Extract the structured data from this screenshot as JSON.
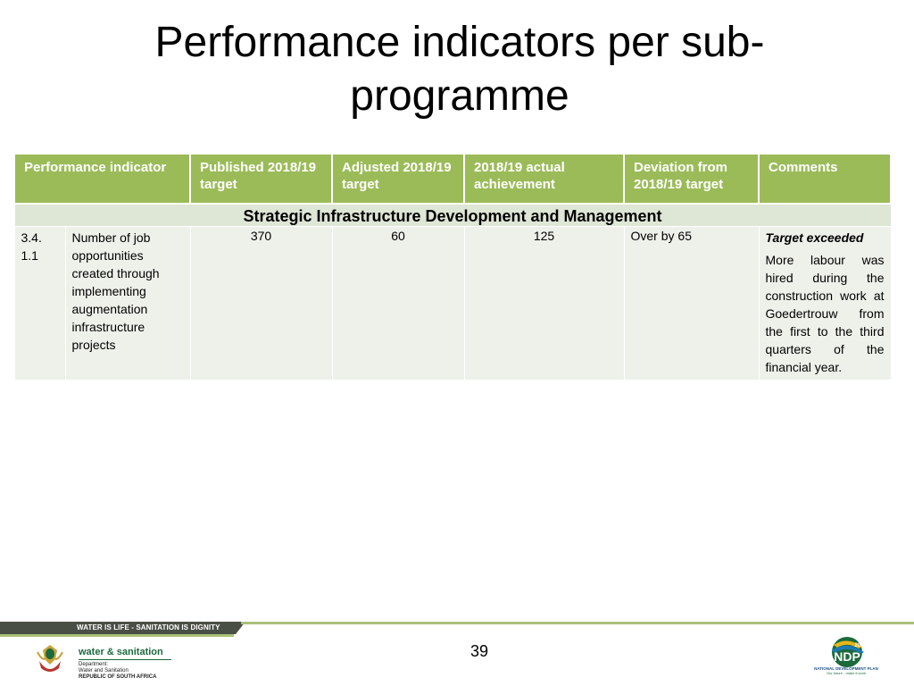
{
  "slide": {
    "title": "Performance indicators per sub-programme",
    "page_number": "39"
  },
  "table": {
    "headers": [
      "Performance indicator",
      "Published 2018/19 target",
      "Adjusted 2018/19 target",
      "2018/19 actual achievement",
      "Deviation from 2018/19 target",
      "Comments"
    ],
    "section": "Strategic Infrastructure Development and Management",
    "rows": [
      {
        "code": "3.4.\n1.1",
        "indicator": "Number of job opportunities created through implementing augmentation infrastructure projects",
        "published_target": "370",
        "adjusted_target": "60",
        "actual": "125",
        "deviation": "Over by 65",
        "comment_head": "Target exceeded",
        "comment_body": "More labour was hired during the construction work at Goedertrouw from the first to the third quarters of the financial year."
      }
    ]
  },
  "footer": {
    "slogan": "WATER IS LIFE - SANITATION IS DIGNITY",
    "dept_brand": "water & sanitation",
    "dept_line1": "Department:",
    "dept_line2": "Water and Sanitation",
    "dept_line3": "REPUBLIC OF SOUTH AFRICA",
    "ndp_year": "2030",
    "ndp_mark": "NDP",
    "ndp_name": "NATIONAL DEVELOPMENT PLAN",
    "ndp_tagline": "Our future - make it work"
  },
  "colors": {
    "header_green": "#9bbb59",
    "section_band": "#dee6d6",
    "row_fill": "#eef1ea",
    "footer_dark": "#4a4f46"
  }
}
